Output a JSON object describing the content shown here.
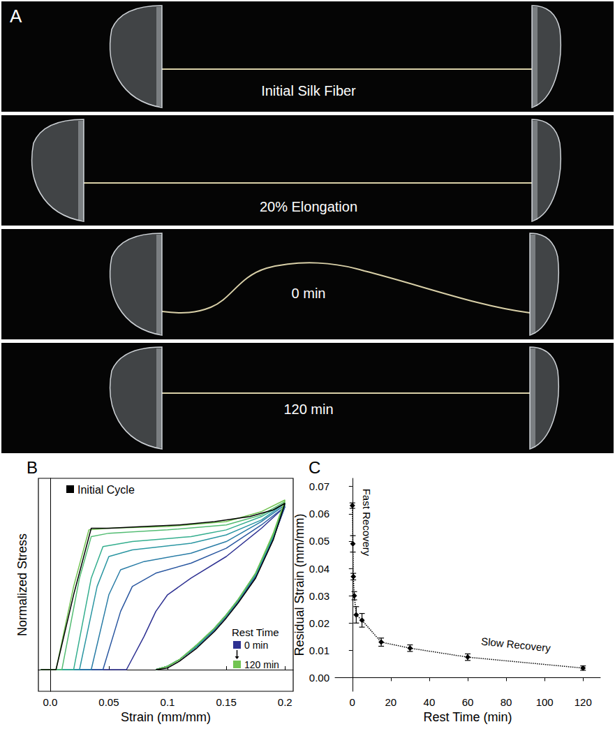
{
  "photo_panel": {
    "panel_label": "A",
    "frames": [
      "Initial Silk Fiber",
      "20% Elongation",
      "0 min",
      "120 min"
    ]
  },
  "chart_data": [
    {
      "panel_label": "B",
      "type": "line",
      "x_label": "Strain (mm/mm)",
      "y_label": "Normalized Stress",
      "xlim": [
        -0.01,
        0.207
      ],
      "xticks": [
        {
          "value": 0,
          "label": "0.0"
        },
        0.05,
        0.1,
        0.15,
        0.2
      ],
      "ylim": [
        -0.13,
        1.15
      ],
      "tick_labels": "x",
      "grid": false,
      "legend": "bottom-right",
      "legend_title": "Rest Time",
      "legend_entries": [
        {
          "label": "0 min",
          "color": "#2e3192"
        },
        {
          "label": "120 min",
          "color": "#72c452"
        }
      ],
      "series": [
        {
          "color": "#2e3192",
          "x": [
            -0.008,
            0.065,
            0.08,
            0.09,
            0.1,
            0.12,
            0.15,
            0.18,
            0.2,
            0.19,
            0.175,
            0.16,
            0.15,
            0.14,
            0.125,
            0.11,
            0.1,
            0.09
          ],
          "values": [
            0,
            0,
            0.2,
            0.35,
            0.45,
            0.55,
            0.68,
            0.85,
            0.98,
            0.79,
            0.56,
            0.41,
            0.32,
            0.24,
            0.14,
            0.06,
            0.02,
            0
          ]
        },
        {
          "color": "#2a57a0",
          "x": [
            -0.008,
            0.045,
            0.06,
            0.07,
            0.09,
            0.12,
            0.15,
            0.18,
            0.2,
            0.19,
            0.175,
            0.16,
            0.15,
            0.14,
            0.125,
            0.11,
            0.1,
            0.09
          ],
          "values": [
            0,
            0,
            0.35,
            0.5,
            0.58,
            0.64,
            0.73,
            0.87,
            0.98,
            0.79,
            0.56,
            0.41,
            0.32,
            0.24,
            0.14,
            0.06,
            0.02,
            0
          ]
        },
        {
          "color": "#297ca6",
          "x": [
            -0.008,
            0.035,
            0.05,
            0.06,
            0.08,
            0.12,
            0.15,
            0.18,
            0.2,
            0.19,
            0.175,
            0.16,
            0.15,
            0.14,
            0.125,
            0.11,
            0.1,
            0.09
          ],
          "values": [
            0,
            0,
            0.45,
            0.6,
            0.65,
            0.7,
            0.77,
            0.89,
            0.99,
            0.8,
            0.57,
            0.41,
            0.32,
            0.24,
            0.14,
            0.06,
            0.02,
            0
          ]
        },
        {
          "color": "#2a96a2",
          "x": [
            -0.008,
            0.025,
            0.04,
            0.05,
            0.07,
            0.12,
            0.15,
            0.18,
            0.2,
            0.19,
            0.175,
            0.16,
            0.15,
            0.14,
            0.125,
            0.11,
            0.1,
            0.09
          ],
          "values": [
            0,
            0,
            0.5,
            0.68,
            0.72,
            0.76,
            0.81,
            0.9,
            1.0,
            0.8,
            0.57,
            0.42,
            0.33,
            0.25,
            0.14,
            0.06,
            0.02,
            0
          ]
        },
        {
          "color": "#34ae8e",
          "x": [
            -0.008,
            0.02,
            0.035,
            0.045,
            0.07,
            0.12,
            0.15,
            0.18,
            0.2,
            0.19,
            0.175,
            0.16,
            0.15,
            0.14,
            0.125,
            0.11,
            0.1,
            0.09
          ],
          "values": [
            0,
            0,
            0.55,
            0.74,
            0.77,
            0.8,
            0.84,
            0.92,
            1.0,
            0.81,
            0.58,
            0.42,
            0.33,
            0.25,
            0.15,
            0.06,
            0.02,
            0
          ]
        },
        {
          "color": "#52bc72",
          "x": [
            -0.008,
            0.01,
            0.025,
            0.035,
            0.05,
            0.1,
            0.15,
            0.18,
            0.2,
            0.19,
            0.175,
            0.16,
            0.15,
            0.14,
            0.125,
            0.11,
            0.1,
            0.09
          ],
          "values": [
            0,
            0,
            0.55,
            0.8,
            0.82,
            0.84,
            0.87,
            0.93,
            1.01,
            0.81,
            0.58,
            0.42,
            0.33,
            0.25,
            0.15,
            0.06,
            0.02,
            0
          ]
        },
        {
          "color": "#72c452",
          "x": [
            -0.008,
            0.005,
            0.02,
            0.033,
            0.05,
            0.1,
            0.15,
            0.18,
            0.2,
            0.19,
            0.175,
            0.16,
            0.15,
            0.14,
            0.125,
            0.11,
            0.1,
            0.09
          ],
          "values": [
            0,
            0,
            0.5,
            0.84,
            0.85,
            0.86,
            0.89,
            0.95,
            1.02,
            0.82,
            0.58,
            0.42,
            0.33,
            0.25,
            0.15,
            0.06,
            0.02,
            0
          ]
        },
        {
          "name": "Initial Cycle",
          "color": "#000000",
          "x": [
            -0.008,
            0.005,
            0.02,
            0.035,
            0.05,
            0.08,
            0.11,
            0.14,
            0.17,
            0.19,
            0.2,
            0.19,
            0.175,
            0.16,
            0.15,
            0.14,
            0.125,
            0.11,
            0.1,
            0.09
          ],
          "values": [
            0,
            0,
            0.45,
            0.85,
            0.85,
            0.86,
            0.87,
            0.89,
            0.92,
            0.96,
            1.0,
            0.78,
            0.55,
            0.4,
            0.31,
            0.23,
            0.13,
            0.05,
            0.01,
            0
          ]
        }
      ]
    },
    {
      "panel_label": "C",
      "type": "scatter",
      "x_label": "Rest Time (min)",
      "y_label": "Residual Strain (mm/mm)",
      "xlim": [
        -9,
        129
      ],
      "xticks": [
        0,
        20,
        40,
        60,
        80,
        100,
        120
      ],
      "ylim": [
        -0.005,
        0.073
      ],
      "yticks": [
        {
          "value": 0,
          "label": "0.00"
        },
        0.01,
        0.02,
        0.03,
        0.04,
        0.05,
        0.06,
        0.07
      ],
      "grid": false,
      "annotations": [
        "Fast Recovery",
        "Slow Recovery"
      ],
      "series": [
        {
          "color": "#000000",
          "marker": "diamond",
          "line_style": "dotted",
          "x": [
            0,
            0.25,
            0.5,
            1,
            2,
            5,
            15,
            30,
            60,
            120
          ],
          "values": [
            0.063,
            0.049,
            0.037,
            0.03,
            0.023,
            0.021,
            0.013,
            0.0108,
            0.0075,
            0.0035
          ],
          "errors": [
            0.001,
            0.003,
            0.0012,
            0.0015,
            0.003,
            0.0025,
            0.0015,
            0.0012,
            0.0012,
            0.0008
          ]
        }
      ]
    }
  ]
}
